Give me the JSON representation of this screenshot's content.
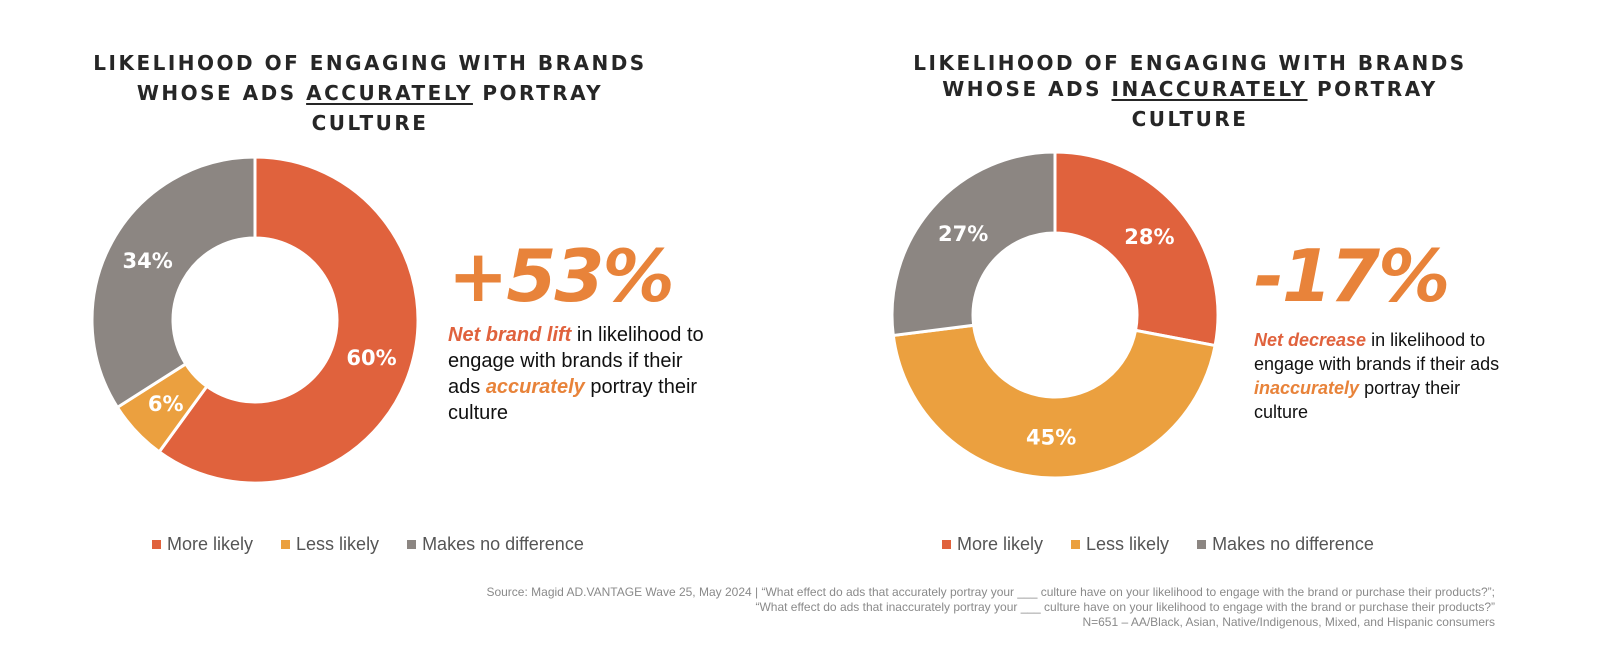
{
  "colors": {
    "more": "#E0623D",
    "less": "#EBA03F",
    "none": "#8C8682",
    "accent": "#E8833A"
  },
  "left": {
    "title_line1": "LIKELIHOOD OF ENGAGING WITH BRANDS",
    "title_pre": "WHOSE ADS ",
    "title_emph": "ACCURATELY",
    "title_post": " PORTRAY CULTURE",
    "big_number": "+53%",
    "desc_emph1": "Net brand lift",
    "desc_mid": " in likelihood to engage with brands if their ads ",
    "desc_emph2": "accurately",
    "desc_end": " portray their culture"
  },
  "right": {
    "title_line1": "LIKELIHOOD OF ENGAGING WITH BRANDS",
    "title_pre": "WHOSE ADS ",
    "title_emph": "INACCURATELY",
    "title_post": " PORTRAY CULTURE",
    "big_number": "-17%",
    "desc_emph1": "Net decrease",
    "desc_mid": " in likelihood to engage with brands if their ads ",
    "desc_emph2": "inaccurately",
    "desc_end": " portray their culture"
  },
  "legend": {
    "more": "More likely",
    "less": "Less likely",
    "none": "Makes no difference"
  },
  "source": {
    "line1": "Source: Magid AD.VANTAGE Wave 25, May 2024 | “What effect do ads that accurately portray your ___ culture have on your likelihood to engage with the brand or purchase their products?”;",
    "line2": "“What effect do ads that inaccurately portray your ___ culture have on your likelihood to engage with the brand or purchase their products?”",
    "line3": "N=651 – AA/Black, Asian, Native/Indigenous, Mixed, and Hispanic consumers"
  },
  "chart_data": [
    {
      "type": "pie",
      "title": "LIKELIHOOD OF ENGAGING WITH BRANDS WHOSE ADS ACCURATELY PORTRAY CULTURE",
      "categories": [
        "More likely",
        "Less likely",
        "Makes no difference"
      ],
      "values": [
        60,
        6,
        34
      ],
      "labels": [
        "60%",
        "6%",
        "34%"
      ],
      "legend": "bottom"
    },
    {
      "type": "pie",
      "title": "LIKELIHOOD OF ENGAGING WITH BRANDS WHOSE ADS INACCURATELY PORTRAY CULTURE",
      "categories": [
        "More likely",
        "Less likely",
        "Makes no difference"
      ],
      "values": [
        28,
        45,
        27
      ],
      "labels": [
        "28%",
        "45%",
        "27%"
      ],
      "legend": "bottom"
    }
  ]
}
